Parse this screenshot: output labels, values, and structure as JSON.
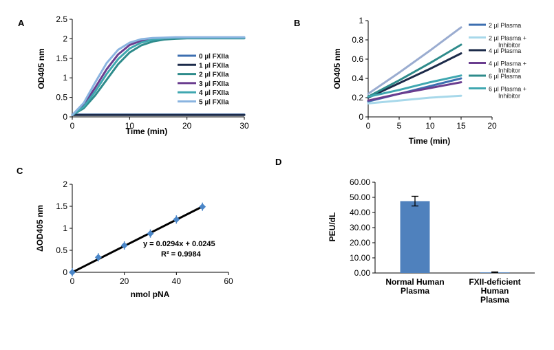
{
  "chart_data": [
    {
      "panel": "A",
      "type": "line",
      "xlabel": "Time (min)",
      "ylabel": "OD405 nm",
      "xlim": [
        0,
        30
      ],
      "ylim": [
        0,
        2.5
      ],
      "xticks": [
        "0",
        "10",
        "20",
        "30"
      ],
      "yticks": [
        "0",
        "0.5",
        "1",
        "1.5",
        "2",
        "2.5"
      ],
      "grid": false,
      "legend_position": "right",
      "x": [
        0,
        2,
        4,
        6,
        8,
        10,
        12,
        14,
        16,
        18,
        20,
        22,
        25,
        30
      ],
      "series": [
        {
          "name": "0 µl FXIIa",
          "color": "#3d6fb0",
          "values": [
            0.06,
            0.06,
            0.06,
            0.06,
            0.06,
            0.06,
            0.06,
            0.06,
            0.06,
            0.06,
            0.06,
            0.06,
            0.06,
            0.06
          ]
        },
        {
          "name": "1 µl FXIIa",
          "color": "#1c2b4a",
          "values": [
            0.05,
            0.05,
            0.05,
            0.05,
            0.05,
            0.05,
            0.05,
            0.05,
            0.05,
            0.05,
            0.05,
            0.05,
            0.05,
            0.05
          ]
        },
        {
          "name": "2 µl FXIIa",
          "color": "#2e8b8b",
          "values": [
            0.05,
            0.22,
            0.55,
            0.95,
            1.35,
            1.65,
            1.83,
            1.93,
            1.98,
            2.0,
            2.01,
            2.01,
            2.01,
            2.01
          ]
        },
        {
          "name": "3 µl FXIIa",
          "color": "#6a3d8f",
          "values": [
            0.05,
            0.3,
            0.75,
            1.22,
            1.6,
            1.84,
            1.95,
            2.0,
            2.01,
            2.02,
            2.02,
            2.02,
            2.02,
            2.02
          ]
        },
        {
          "name": "4 µl FXIIa",
          "color": "#3fa7b0",
          "values": [
            0.05,
            0.26,
            0.65,
            1.1,
            1.48,
            1.75,
            1.9,
            1.98,
            2.01,
            2.02,
            2.02,
            2.02,
            2.02,
            2.02
          ]
        },
        {
          "name": "5 µl FXIIa",
          "color": "#8ab4e0",
          "values": [
            0.05,
            0.36,
            0.88,
            1.38,
            1.72,
            1.9,
            1.99,
            2.02,
            2.03,
            2.04,
            2.04,
            2.04,
            2.04,
            2.04
          ]
        }
      ]
    },
    {
      "panel": "B",
      "type": "line",
      "xlabel": "Time (min)",
      "ylabel": "OD405 nm",
      "xlim": [
        0,
        20
      ],
      "ylim": [
        0,
        1
      ],
      "xticks": [
        "0",
        "5",
        "10",
        "15",
        "20"
      ],
      "yticks": [
        "0",
        "0.2",
        "0.4",
        "0.6",
        "0.8",
        "1"
      ],
      "grid": false,
      "legend_position": "right",
      "x": [
        0,
        5,
        10,
        15
      ],
      "series": [
        {
          "name": "2 µl Plasma",
          "color": "#3d6fb0",
          "values": [
            0.16,
            0.24,
            0.32,
            0.4
          ]
        },
        {
          "name": "2 µl Plasma + Inhibitor",
          "color": "#a7d8ea",
          "values": [
            0.14,
            0.17,
            0.2,
            0.22
          ]
        },
        {
          "name": "4 µl Plasma",
          "color": "#1c2b4a",
          "values": [
            0.2,
            0.35,
            0.5,
            0.66
          ]
        },
        {
          "name": "4 µl Plasma + Inhibitor",
          "color": "#6a3d8f",
          "values": [
            0.17,
            0.24,
            0.3,
            0.36
          ]
        },
        {
          "name": "6 µl Plasma",
          "color": "#2e8b8b",
          "values": [
            0.21,
            0.38,
            0.56,
            0.75
          ]
        },
        {
          "name": "6 µl Plasma + Inhibitor",
          "color": "#3fa7b0",
          "values": [
            0.21,
            0.28,
            0.36,
            0.43
          ]
        },
        {
          "name": "",
          "color": "#9aacd0",
          "values": [
            0.24,
            0.46,
            0.69,
            0.93
          ]
        }
      ]
    },
    {
      "panel": "C",
      "type": "scatter",
      "xlabel": "nmol pNA",
      "ylabel": "ΔOD405 nm",
      "xlim": [
        0,
        60
      ],
      "ylim": [
        0,
        2
      ],
      "xticks": [
        "0",
        "20",
        "40",
        "60"
      ],
      "yticks": [
        "0",
        "0.5",
        "1",
        "1.5",
        "2"
      ],
      "grid": false,
      "x": [
        0,
        10,
        20,
        30,
        40,
        50
      ],
      "y": [
        0.0,
        0.34,
        0.61,
        0.88,
        1.2,
        1.49
      ],
      "fit": {
        "slope": 0.0294,
        "intercept": 0.0245
      },
      "annotation": [
        "y = 0.0294x + 0.0245",
        "R² = 0.9984"
      ],
      "point_color": "#4a86c8",
      "line_color": "#000000"
    },
    {
      "panel": "D",
      "type": "bar",
      "ylabel": "PEU/dL",
      "ylim": [
        0,
        60
      ],
      "yticks": [
        "0.00",
        "10.00",
        "20.00",
        "30.00",
        "40.00",
        "50.00",
        "60.00"
      ],
      "grid": false,
      "categories": [
        [
          "Normal Human",
          "Plasma"
        ],
        [
          "FXII-deficient",
          "Human",
          "Plasma"
        ]
      ],
      "values": [
        47.5,
        0.4
      ],
      "errors": [
        3.2,
        0.3
      ],
      "bar_color": "#4f81bd"
    }
  ]
}
